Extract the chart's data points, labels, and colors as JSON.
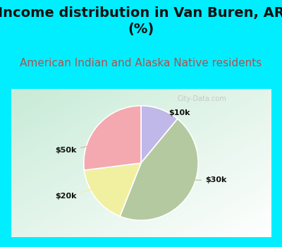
{
  "title": "Income distribution in Van Buren, AR\n(%)",
  "subtitle": "American Indian and Alaska Native residents",
  "labels": [
    "$10k",
    "$30k",
    "$20k",
    "$50k"
  ],
  "sizes": [
    11,
    45,
    17,
    27
  ],
  "colors": [
    "#c0b8e8",
    "#b5c9a0",
    "#f0f0a0",
    "#f4a8b0"
  ],
  "startangle": 90,
  "title_fontsize": 14,
  "subtitle_fontsize": 11,
  "subtitle_color": "#b05050",
  "bg_cyan": "#00eeff",
  "title_color": "#111111",
  "label_fontsize": 8,
  "watermark": "City-Data.com"
}
